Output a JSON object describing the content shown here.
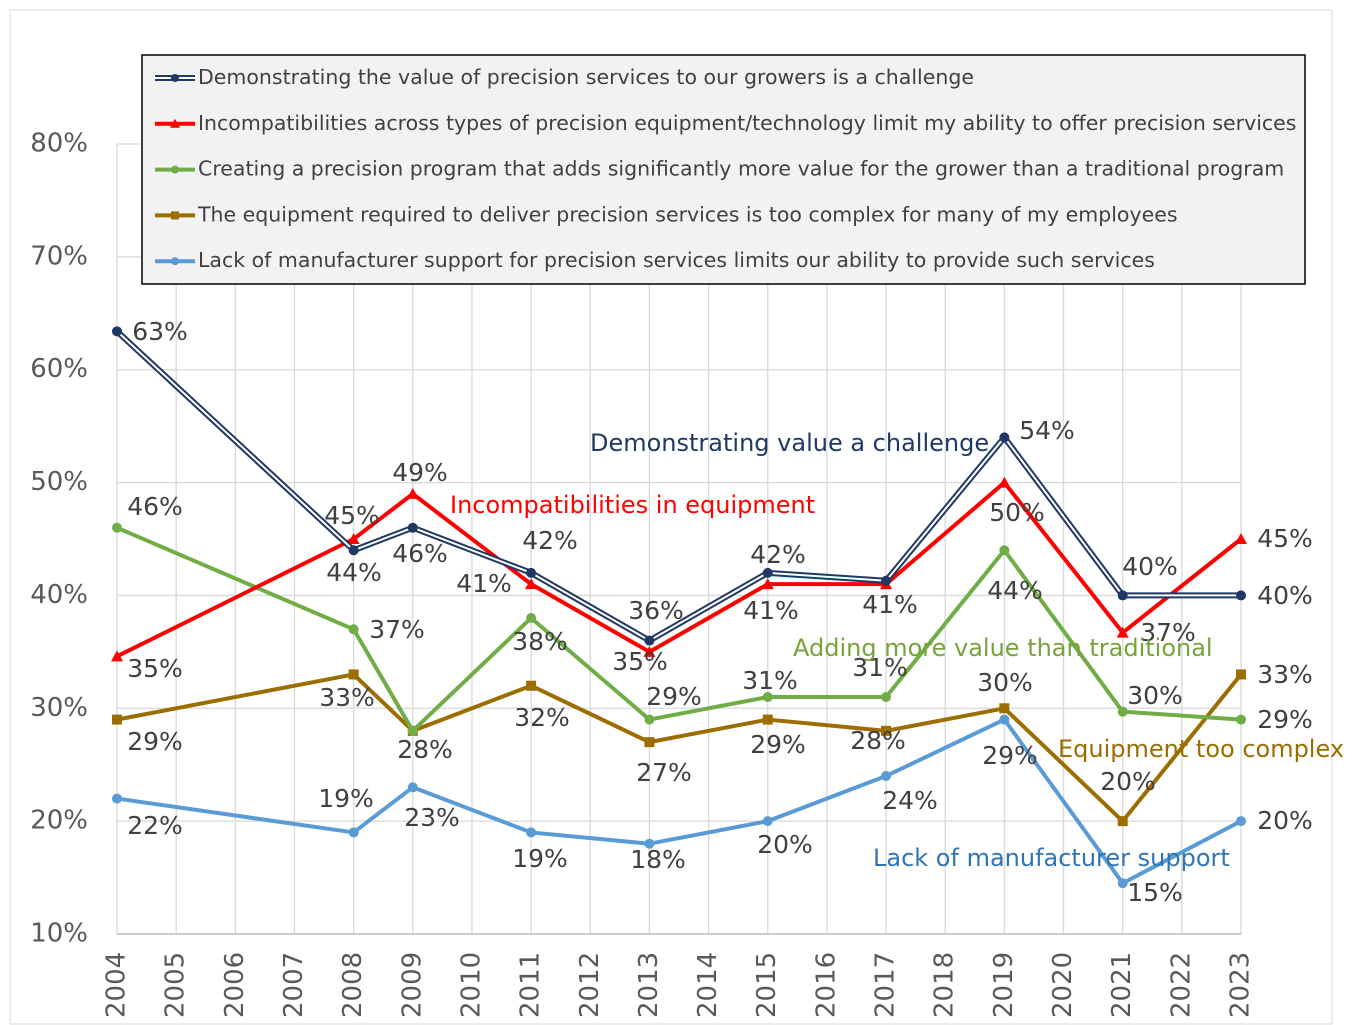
{
  "chart_data": {
    "type": "line",
    "x": [
      2004,
      2008,
      2009,
      2011,
      2013,
      2015,
      2017,
      2019,
      2021,
      2023
    ],
    "xlim": [
      2004,
      2023
    ],
    "xticks": [
      2004,
      2005,
      2006,
      2007,
      2008,
      2009,
      2010,
      2011,
      2012,
      2013,
      2014,
      2015,
      2016,
      2017,
      2018,
      2019,
      2020,
      2021,
      2022,
      2023
    ],
    "ylim": [
      10,
      80
    ],
    "yticks": [
      {
        "value": 10,
        "label": "10%"
      },
      {
        "value": 20,
        "label": "20%"
      },
      {
        "value": 30,
        "label": "30%"
      },
      {
        "value": 40,
        "label": "40%"
      },
      {
        "value": 50,
        "label": "50%"
      },
      {
        "value": 60,
        "label": "60%"
      },
      {
        "value": 70,
        "label": "70%"
      },
      {
        "value": 80,
        "label": "80%"
      }
    ],
    "grid": true,
    "legend": "top",
    "series": [
      {
        "name": "Demonstrating the value of precision services to our growers is a challenge",
        "color": "#203864",
        "marker": "circle",
        "style": "double",
        "values": [
          63.4,
          44,
          46,
          42,
          36,
          42,
          41.3,
          54,
          40,
          40
        ],
        "value_labels": [
          "63%",
          "44%",
          "46%",
          "42%",
          "36%",
          "42%",
          null,
          "54%",
          "40%",
          "40%"
        ]
      },
      {
        "name": "Incompatibilities across types of precision equipment/technology limit my ability to offer precision services",
        "color": "#ff0000",
        "marker": "triangle",
        "style": "single",
        "values": [
          34.6,
          45,
          49,
          41,
          35,
          41,
          41,
          50,
          36.7,
          45
        ],
        "value_labels": [
          "35%",
          "45%",
          "49%",
          "41%",
          "35%",
          "41%",
          "41%",
          "50%",
          "37%",
          "45%"
        ]
      },
      {
        "name": "Creating a precision program that adds significantly more value for the grower than a traditional program",
        "color": "#70ad47",
        "marker": "circle",
        "style": "single",
        "values": [
          46,
          37,
          28,
          38,
          29,
          31,
          31,
          44,
          29.7,
          29
        ],
        "value_labels": [
          "46%",
          "37%",
          null,
          "38%",
          "29%",
          "31%",
          "31%",
          "44%",
          "30%",
          "29%"
        ]
      },
      {
        "name": "The equipment required to deliver precision services is too complex for many of my employees",
        "color": "#9c6d00",
        "marker": "square",
        "style": "single",
        "values": [
          29,
          33,
          28,
          32,
          27,
          29,
          28,
          30,
          20,
          33
        ],
        "value_labels": [
          "29%",
          "33%",
          "28%",
          "32%",
          "27%",
          "29%",
          "28%",
          "30%",
          "20%",
          "33%"
        ]
      },
      {
        "name": "Lack of manufacturer support for precision services limits our ability to provide such services",
        "color": "#5b9bd5",
        "marker": "circle",
        "style": "single",
        "values": [
          22,
          19,
          23,
          19,
          18,
          20,
          24,
          29,
          14.5,
          20
        ],
        "value_labels": [
          "22%",
          "19%",
          "23%",
          "19%",
          "18%",
          "20%",
          "24%",
          "29%",
          "15%",
          "20%"
        ]
      }
    ],
    "annotations": [
      {
        "text": "Demonstrating value a challenge",
        "color": "#203864"
      },
      {
        "text": "Incompatibilities in equipment",
        "color": "#ff0000"
      },
      {
        "text": "Adding more value than traditional",
        "color": "#77a33a"
      },
      {
        "text": "Equipment too complex",
        "color": "#9c6d00"
      },
      {
        "text": "Lack of manufacturer support",
        "color": "#2e75b6"
      }
    ]
  }
}
